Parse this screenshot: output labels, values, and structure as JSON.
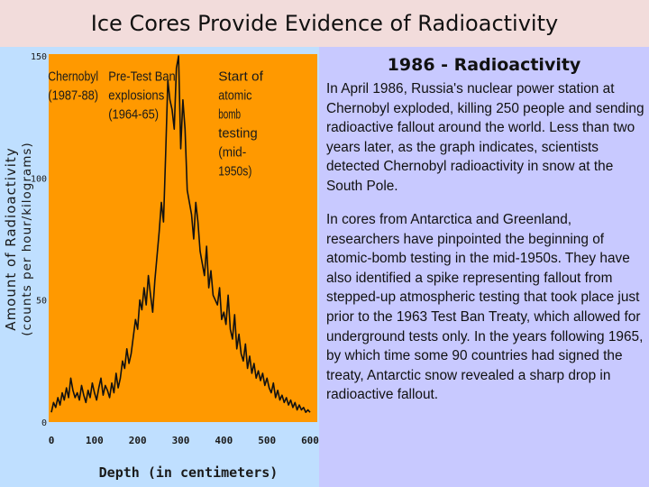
{
  "slide": {
    "title": "Ice Cores Provide Evidence of Radioactivity",
    "heading": "1986 - Radioactivity",
    "paragraph1": "In April 1986, Russia's nuclear power station at Chernobyl exploded, killing 250 people and sending radioactive fallout around the world. Less than two years later, as the graph indicates, scientists detected Chernobyl radioactivity in snow at the South Pole.",
    "paragraph2": "In cores from Antarctica and Greenland, researchers have pinpointed the beginning of atomic-bomb testing in the mid-1950s. They have also identified a spike representing fallout from stepped-up atmospheric testing that took place just prior to the 1963 Test Ban Treaty, which allowed for underground tests only. In the years following 1965, by which time some 90 countries had signed the treaty, Antarctic snow revealed a sharp drop in radioactive fallout."
  },
  "colors": {
    "title_background": "#f2dcdb",
    "chart_panel": "#bfdfff",
    "plot_area": "#ff9900",
    "text_panel": "#c8c9ff",
    "trace": "#111111"
  },
  "chart_data": {
    "type": "line",
    "title": "",
    "xlabel": "Depth (in centimeters)",
    "ylabel_line1": "Amount of Radioactivity",
    "ylabel_line2": "(counts per hour/kilograms)",
    "xlim": [
      0,
      600
    ],
    "ylim": [
      0,
      150
    ],
    "x_ticks": [
      0,
      100,
      200,
      300,
      400,
      500,
      600
    ],
    "y_ticks": [
      0,
      50,
      100,
      150
    ],
    "grid": false,
    "annotations": [
      {
        "lines": [
          "Chernobyl",
          "(1987-88)"
        ],
        "x": 55,
        "y": 145
      },
      {
        "lines": [
          "Pre-Test Ban",
          "explosions",
          "(1964-65)"
        ],
        "x": 195,
        "y": 145
      },
      {
        "lines": [
          "Start of",
          "atomic",
          "bomb",
          "testing",
          "(mid-",
          "1950s)"
        ],
        "x": 450,
        "y": 145
      }
    ],
    "series": [
      {
        "x": [
          0,
          5,
          10,
          15,
          20,
          25,
          30,
          35,
          40,
          45,
          50,
          55,
          60,
          65,
          70,
          75,
          80,
          85,
          90,
          95,
          100,
          105,
          110,
          115,
          120,
          125,
          130,
          135,
          140,
          145,
          150,
          155,
          160,
          165,
          170,
          175,
          180,
          185,
          190,
          195,
          200,
          205,
          210,
          215,
          220,
          225,
          230,
          235,
          240,
          245,
          250,
          255,
          260,
          265,
          270,
          275,
          280,
          285,
          290,
          295,
          300,
          305,
          310,
          315,
          320,
          325,
          330,
          335,
          340,
          345,
          350,
          355,
          360,
          365,
          370,
          375,
          380,
          385,
          390,
          395,
          400,
          405,
          410,
          415,
          420,
          425,
          430,
          435,
          440,
          445,
          450,
          455,
          460,
          465,
          470,
          475,
          480,
          485,
          490,
          495,
          500,
          505,
          510,
          515,
          520,
          525,
          530,
          535,
          540,
          545,
          550,
          555,
          560,
          565,
          570,
          575,
          580,
          585,
          590,
          595,
          600
        ],
        "y": [
          4,
          8,
          6,
          10,
          7,
          12,
          9,
          14,
          10,
          18,
          13,
          10,
          12,
          9,
          15,
          11,
          8,
          13,
          10,
          16,
          12,
          9,
          14,
          18,
          11,
          15,
          13,
          10,
          16,
          12,
          20,
          14,
          18,
          25,
          22,
          30,
          24,
          28,
          35,
          42,
          38,
          50,
          46,
          55,
          48,
          60,
          52,
          45,
          58,
          68,
          78,
          90,
          82,
          110,
          140,
          132,
          128,
          120,
          145,
          150,
          112,
          132,
          120,
          95,
          90,
          85,
          75,
          90,
          82,
          70,
          65,
          60,
          72,
          55,
          62,
          52,
          50,
          48,
          55,
          42,
          45,
          40,
          52,
          38,
          34,
          44,
          30,
          36,
          28,
          25,
          32,
          22,
          27,
          20,
          24,
          18,
          21,
          17,
          20,
          15,
          18,
          14,
          12,
          16,
          10,
          13,
          9,
          11,
          8,
          10,
          7,
          9,
          6,
          8,
          5,
          7,
          5,
          6,
          4,
          5,
          4
        ]
      }
    ]
  }
}
